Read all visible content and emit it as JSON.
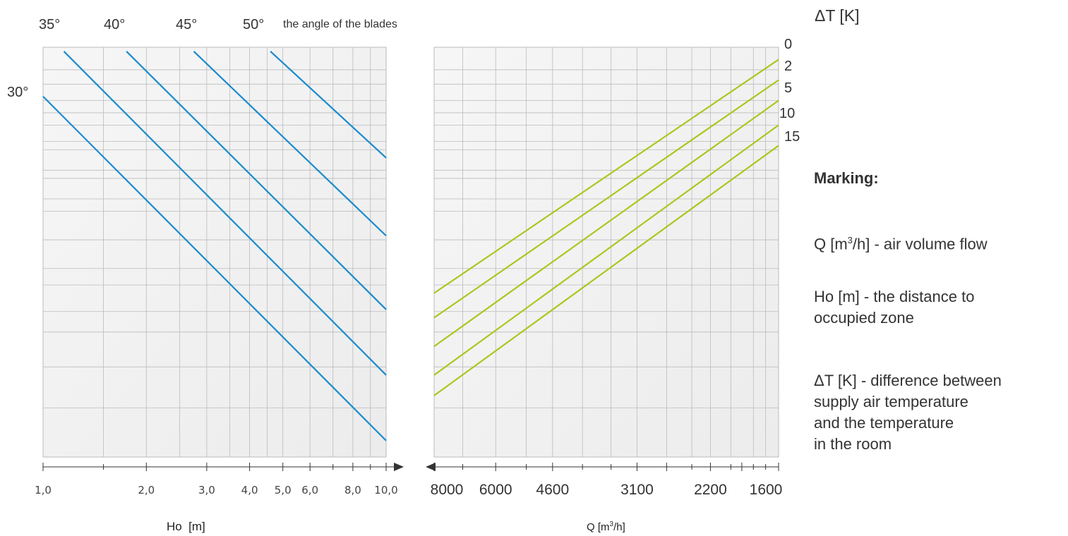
{
  "chart_data": {
    "type": "line",
    "angle_header": "the angle of the blades",
    "angle_labels": [
      "35°",
      "40°",
      "45°",
      "50°"
    ],
    "angle_label_30": "30°",
    "dt_header": "ΔT [K]",
    "dt_labels": [
      "0",
      "2",
      "5",
      "10",
      "15"
    ],
    "left_panel": {
      "xlabel": "Ho  [m]",
      "x_scale": "log",
      "xlim": [
        1.0,
        10.0
      ],
      "tick_labels": [
        "1,0",
        "2,0",
        "3,0",
        "4,0",
        "5,0",
        "6,0",
        "8,0",
        "10,0"
      ],
      "tick_values": [
        1,
        2,
        3,
        4,
        5,
        6,
        8,
        10
      ],
      "series": [
        {
          "name": "30°",
          "x": [
            1.0,
            10.0
          ],
          "y": [
            0.88,
            0.04
          ]
        },
        {
          "name": "35°",
          "x": [
            1.15,
            10.0
          ],
          "y": [
            0.99,
            0.2
          ]
        },
        {
          "name": "40°",
          "x": [
            1.75,
            10.0
          ],
          "y": [
            0.99,
            0.36
          ]
        },
        {
          "name": "45°",
          "x": [
            2.75,
            10.0
          ],
          "y": [
            0.99,
            0.54
          ]
        },
        {
          "name": "50°",
          "x": [
            4.6,
            10.0
          ],
          "y": [
            0.99,
            0.73
          ]
        }
      ]
    },
    "right_panel": {
      "xlabel_main": "Q [m",
      "xlabel_sup": "3",
      "xlabel_end": "/h]",
      "x_scale": "log_reversed",
      "xlim": [
        8000,
        1600
      ],
      "tick_labels": [
        "8000",
        "6000",
        "4600",
        "3100",
        "2200",
        "1600"
      ],
      "tick_values": [
        8000,
        6000,
        4600,
        3100,
        2200,
        1600
      ],
      "series": [
        {
          "name": "0",
          "x": [
            8000,
            1600
          ],
          "y": [
            0.4,
            0.97
          ]
        },
        {
          "name": "2",
          "x": [
            8000,
            1600
          ],
          "y": [
            0.34,
            0.92
          ]
        },
        {
          "name": "5",
          "x": [
            8000,
            1600
          ],
          "y": [
            0.27,
            0.87
          ]
        },
        {
          "name": "10",
          "x": [
            8000,
            1600
          ],
          "y": [
            0.2,
            0.81
          ]
        },
        {
          "name": "15",
          "x": [
            8000,
            1600
          ],
          "y": [
            0.15,
            0.76
          ]
        }
      ]
    },
    "colors": {
      "blade_lines": "#1a8bcd",
      "dt_lines": "#a8c81e",
      "grid": "#bbbbbb",
      "panel_bg": "#f3f3f3"
    }
  },
  "legend": {
    "title": "Marking:",
    "q_prefix": "Q [m",
    "q_sup": "3",
    "q_suffix": "/h] - air volume flow",
    "ho_line1": "Ho [m] - the distance to",
    "ho_line2": "occupied zone",
    "dt_line1": "ΔT [K] - difference between",
    "dt_line2": "supply air temperature",
    "dt_line3": "and the temperature",
    "dt_line4": "in the room"
  }
}
